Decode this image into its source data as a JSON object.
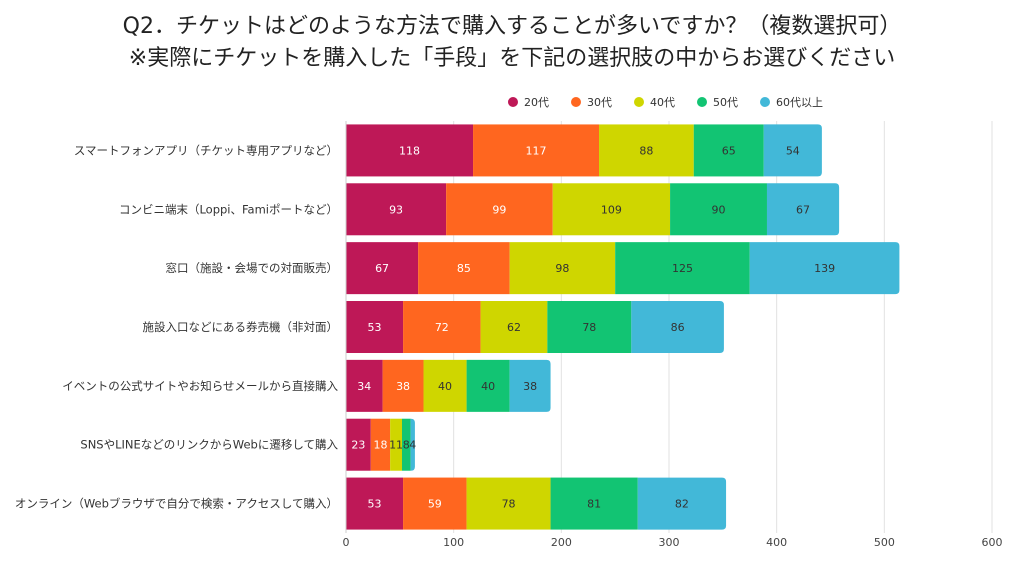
{
  "chart_data": {
    "type": "bar",
    "orientation": "horizontal",
    "stacked": true,
    "title": "Q2．チケットはどのような方法で購入することが多いですか？（複数選択可）",
    "subtitle": "※実際にチケットを購入した「手段」を下記の選択肢の中からお選びください",
    "xlabel": "",
    "ylabel": "",
    "xlim": [
      0,
      600
    ],
    "xticks": [
      "0",
      "100",
      "200",
      "300",
      "400",
      "500",
      "600"
    ],
    "grid": true,
    "legend_position": "top-right",
    "categories": [
      "スマートフォンアプリ（チケット専用アプリなど）",
      "コンビニ端末（Loppi、Famiポートなど）",
      "窓口（施設・会場での対面販売）",
      "施設入口などにある券売機（非対面）",
      "イベントの公式サイトやお知らせメールから直接購入",
      "SNSやLINEなどのリンクからWebに遷移して購入",
      "オンライン（Webブラウザで自分で検索・アクセスして購入）"
    ],
    "series": [
      {
        "name": "20代",
        "color": "#be1857",
        "label_color": "#ffffff",
        "values": [
          118,
          93,
          67,
          53,
          34,
          23,
          53
        ]
      },
      {
        "name": "30代",
        "color": "#ff661f",
        "label_color": "#ffffff",
        "values": [
          117,
          99,
          85,
          72,
          38,
          18,
          59
        ]
      },
      {
        "name": "40代",
        "color": "#cfd600",
        "label_color": "#333333",
        "values": [
          88,
          109,
          98,
          62,
          40,
          11,
          78
        ]
      },
      {
        "name": "50代",
        "color": "#12c473",
        "label_color": "#333333",
        "values": [
          65,
          90,
          125,
          78,
          40,
          8,
          81
        ]
      },
      {
        "name": "60代以上",
        "color": "#42b8d8",
        "label_color": "#333333",
        "values": [
          54,
          67,
          139,
          86,
          38,
          4,
          82
        ]
      }
    ]
  }
}
